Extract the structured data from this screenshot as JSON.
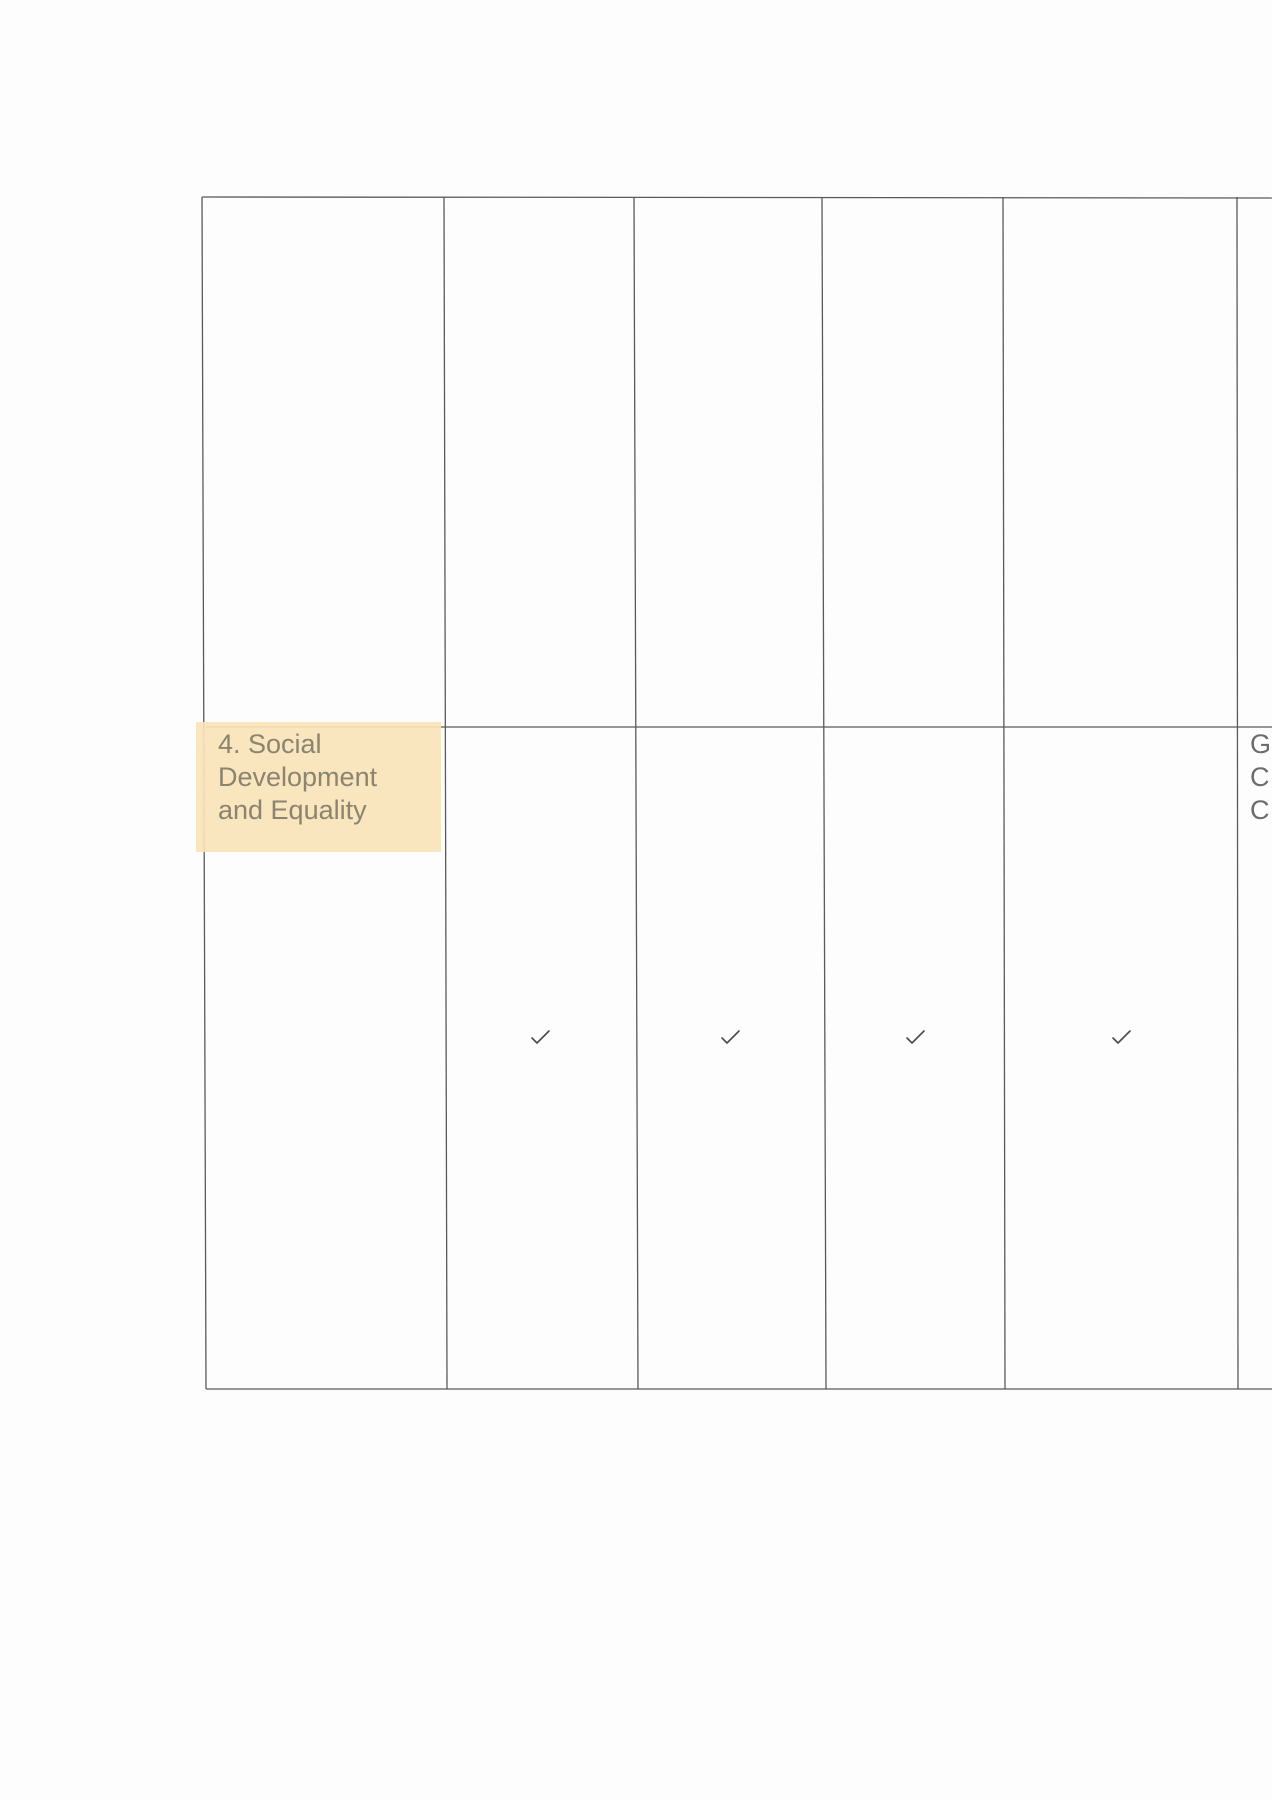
{
  "table": {
    "row_label": {
      "line1": "4. Social",
      "line2": "Development",
      "line3": "and Equality"
    },
    "clipped_column_text": {
      "line1": "G",
      "line2": "C",
      "line3": "C"
    },
    "checks": [
      "✓",
      "✓",
      "✓",
      "✓"
    ]
  },
  "colors": {
    "highlight": "#f8e3b8",
    "label_text": "#8b846f",
    "grid_line": "#5a5a5a"
  }
}
